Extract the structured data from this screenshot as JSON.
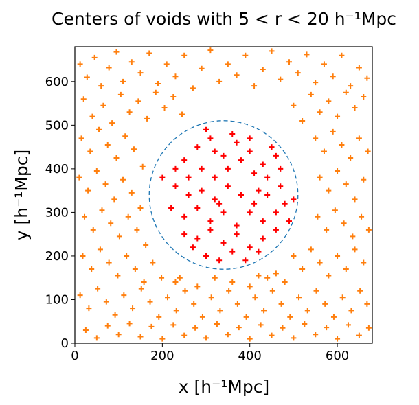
{
  "chart_data": {
    "type": "scatter",
    "title": "Centers of voids with 5 < r < 20 h⁻¹Mpc",
    "xlabel": "x [h⁻¹Mpc]",
    "ylabel": "y [h⁻¹Mpc]",
    "xlim": [
      0,
      680
    ],
    "ylim": [
      0,
      680
    ],
    "xticks": [
      0,
      200,
      400,
      600
    ],
    "yticks": [
      0,
      100,
      200,
      300,
      400,
      500,
      600
    ],
    "marker": "+",
    "grid": false,
    "legend": "none",
    "circle": {
      "center": [
        340,
        340
      ],
      "radius": 170,
      "color": "#1f77b4",
      "style": "dashed"
    },
    "series": [
      {
        "color": "#ff7f0e",
        "region": "outside circle",
        "points": [
          [
            12,
            640
          ],
          [
            28,
            610
          ],
          [
            45,
            655
          ],
          [
            60,
            590
          ],
          [
            78,
            632
          ],
          [
            95,
            668
          ],
          [
            110,
            600
          ],
          [
            130,
            645
          ],
          [
            150,
            620
          ],
          [
            170,
            665
          ],
          [
            190,
            595
          ],
          [
            210,
            640
          ],
          [
            230,
            612
          ],
          [
            250,
            660
          ],
          [
            270,
            585
          ],
          [
            290,
            630
          ],
          [
            310,
            672
          ],
          [
            330,
            600
          ],
          [
            350,
            640
          ],
          [
            370,
            615
          ],
          [
            390,
            660
          ],
          [
            410,
            590
          ],
          [
            430,
            628
          ],
          [
            450,
            670
          ],
          [
            470,
            605
          ],
          [
            490,
            645
          ],
          [
            510,
            620
          ],
          [
            530,
            662
          ],
          [
            550,
            598
          ],
          [
            570,
            640
          ],
          [
            590,
            612
          ],
          [
            610,
            660
          ],
          [
            630,
            590
          ],
          [
            650,
            632
          ],
          [
            668,
            608
          ],
          [
            20,
            560
          ],
          [
            40,
            520
          ],
          [
            65,
            545
          ],
          [
            85,
            505
          ],
          [
            105,
            570
          ],
          [
            125,
            530
          ],
          [
            145,
            555
          ],
          [
            165,
            515
          ],
          [
            185,
            575
          ],
          [
            205,
            540
          ],
          [
            225,
            565
          ],
          [
            245,
            525
          ],
          [
            500,
            545
          ],
          [
            520,
            510
          ],
          [
            540,
            570
          ],
          [
            560,
            530
          ],
          [
            580,
            555
          ],
          [
            600,
            520
          ],
          [
            620,
            575
          ],
          [
            640,
            540
          ],
          [
            660,
            565
          ],
          [
            15,
            470
          ],
          [
            35,
            440
          ],
          [
            55,
            490
          ],
          [
            75,
            455
          ],
          [
            95,
            425
          ],
          [
            115,
            475
          ],
          [
            135,
            445
          ],
          [
            155,
            405
          ],
          [
            550,
            470
          ],
          [
            570,
            440
          ],
          [
            590,
            485
          ],
          [
            610,
            455
          ],
          [
            630,
            425
          ],
          [
            650,
            470
          ],
          [
            670,
            440
          ],
          [
            10,
            380
          ],
          [
            30,
            350
          ],
          [
            50,
            395
          ],
          [
            70,
            365
          ],
          [
            90,
            330
          ],
          [
            110,
            375
          ],
          [
            130,
            345
          ],
          [
            150,
            310
          ],
          [
            560,
            380
          ],
          [
            580,
            350
          ],
          [
            600,
            395
          ],
          [
            620,
            365
          ],
          [
            640,
            330
          ],
          [
            660,
            375
          ],
          [
            22,
            290
          ],
          [
            42,
            260
          ],
          [
            62,
            305
          ],
          [
            82,
            275
          ],
          [
            102,
            245
          ],
          [
            122,
            290
          ],
          [
            142,
            260
          ],
          [
            162,
            225
          ],
          [
            555,
            290
          ],
          [
            575,
            260
          ],
          [
            595,
            305
          ],
          [
            615,
            275
          ],
          [
            635,
            245
          ],
          [
            655,
            290
          ],
          [
            672,
            260
          ],
          [
            18,
            200
          ],
          [
            38,
            170
          ],
          [
            58,
            215
          ],
          [
            78,
            185
          ],
          [
            98,
            155
          ],
          [
            118,
            200
          ],
          [
            138,
            170
          ],
          [
            158,
            140
          ],
          [
            178,
            185
          ],
          [
            198,
            150
          ],
          [
            500,
            200
          ],
          [
            520,
            170
          ],
          [
            540,
            215
          ],
          [
            560,
            185
          ],
          [
            580,
            155
          ],
          [
            600,
            200
          ],
          [
            620,
            170
          ],
          [
            640,
            215
          ],
          [
            660,
            185
          ],
          [
            12,
            110
          ],
          [
            32,
            80
          ],
          [
            52,
            125
          ],
          [
            72,
            95
          ],
          [
            92,
            65
          ],
          [
            112,
            110
          ],
          [
            132,
            80
          ],
          [
            152,
            125
          ],
          [
            172,
            95
          ],
          [
            192,
            60
          ],
          [
            212,
            105
          ],
          [
            232,
            75
          ],
          [
            252,
            120
          ],
          [
            272,
            90
          ],
          [
            292,
            60
          ],
          [
            312,
            105
          ],
          [
            332,
            75
          ],
          [
            352,
            120
          ],
          [
            372,
            90
          ],
          [
            392,
            60
          ],
          [
            412,
            105
          ],
          [
            432,
            75
          ],
          [
            452,
            120
          ],
          [
            472,
            90
          ],
          [
            492,
            60
          ],
          [
            512,
            105
          ],
          [
            532,
            75
          ],
          [
            552,
            120
          ],
          [
            572,
            90
          ],
          [
            592,
            60
          ],
          [
            612,
            105
          ],
          [
            632,
            75
          ],
          [
            652,
            120
          ],
          [
            668,
            90
          ],
          [
            25,
            30
          ],
          [
            50,
            12
          ],
          [
            75,
            40
          ],
          [
            100,
            20
          ],
          [
            125,
            45
          ],
          [
            150,
            15
          ],
          [
            175,
            38
          ],
          [
            200,
            10
          ],
          [
            225,
            42
          ],
          [
            250,
            18
          ],
          [
            275,
            35
          ],
          [
            300,
            12
          ],
          [
            325,
            44
          ],
          [
            350,
            20
          ],
          [
            375,
            36
          ],
          [
            400,
            10
          ],
          [
            425,
            42
          ],
          [
            450,
            18
          ],
          [
            475,
            35
          ],
          [
            500,
            12
          ],
          [
            525,
            44
          ],
          [
            550,
            20
          ],
          [
            575,
            36
          ],
          [
            600,
            10
          ],
          [
            625,
            42
          ],
          [
            650,
            18
          ],
          [
            672,
            35
          ],
          [
            240,
            150
          ],
          [
            280,
            130
          ],
          [
            320,
            150
          ],
          [
            360,
            140
          ],
          [
            400,
            130
          ],
          [
            440,
            150
          ],
          [
            480,
            140
          ],
          [
            230,
            140
          ],
          [
            460,
            160
          ],
          [
            420,
            155
          ]
        ]
      },
      {
        "color": "#ff0000",
        "region": "inside circle",
        "points": [
          [
            250,
            420
          ],
          [
            280,
            450
          ],
          [
            310,
            470
          ],
          [
            340,
            430
          ],
          [
            370,
            460
          ],
          [
            400,
            440
          ],
          [
            430,
            410
          ],
          [
            460,
            430
          ],
          [
            290,
            400
          ],
          [
            320,
            380
          ],
          [
            350,
            400
          ],
          [
            380,
            420
          ],
          [
            410,
            390
          ],
          [
            440,
            380
          ],
          [
            470,
            400
          ],
          [
            200,
            380
          ],
          [
            230,
            360
          ],
          [
            260,
            340
          ],
          [
            290,
            350
          ],
          [
            320,
            330
          ],
          [
            350,
            360
          ],
          [
            380,
            340
          ],
          [
            410,
            320
          ],
          [
            440,
            340
          ],
          [
            470,
            360
          ],
          [
            500,
            330
          ],
          [
            220,
            310
          ],
          [
            250,
            290
          ],
          [
            280,
            310
          ],
          [
            310,
            280
          ],
          [
            340,
            300
          ],
          [
            370,
            270
          ],
          [
            400,
            300
          ],
          [
            430,
            280
          ],
          [
            460,
            300
          ],
          [
            490,
            280
          ],
          [
            250,
            250
          ],
          [
            280,
            240
          ],
          [
            310,
            260
          ],
          [
            340,
            230
          ],
          [
            370,
            250
          ],
          [
            400,
            220
          ],
          [
            430,
            240
          ],
          [
            460,
            260
          ],
          [
            300,
            200
          ],
          [
            330,
            190
          ],
          [
            360,
            210
          ],
          [
            390,
            190
          ],
          [
            420,
            210
          ],
          [
            270,
            220
          ],
          [
            320,
            440
          ],
          [
            360,
            480
          ],
          [
            300,
            490
          ],
          [
            400,
            470
          ],
          [
            450,
            450
          ],
          [
            230,
            400
          ],
          [
            480,
            320
          ],
          [
            330,
            320
          ],
          [
            260,
            380
          ],
          [
            420,
            350
          ]
        ]
      }
    ]
  }
}
